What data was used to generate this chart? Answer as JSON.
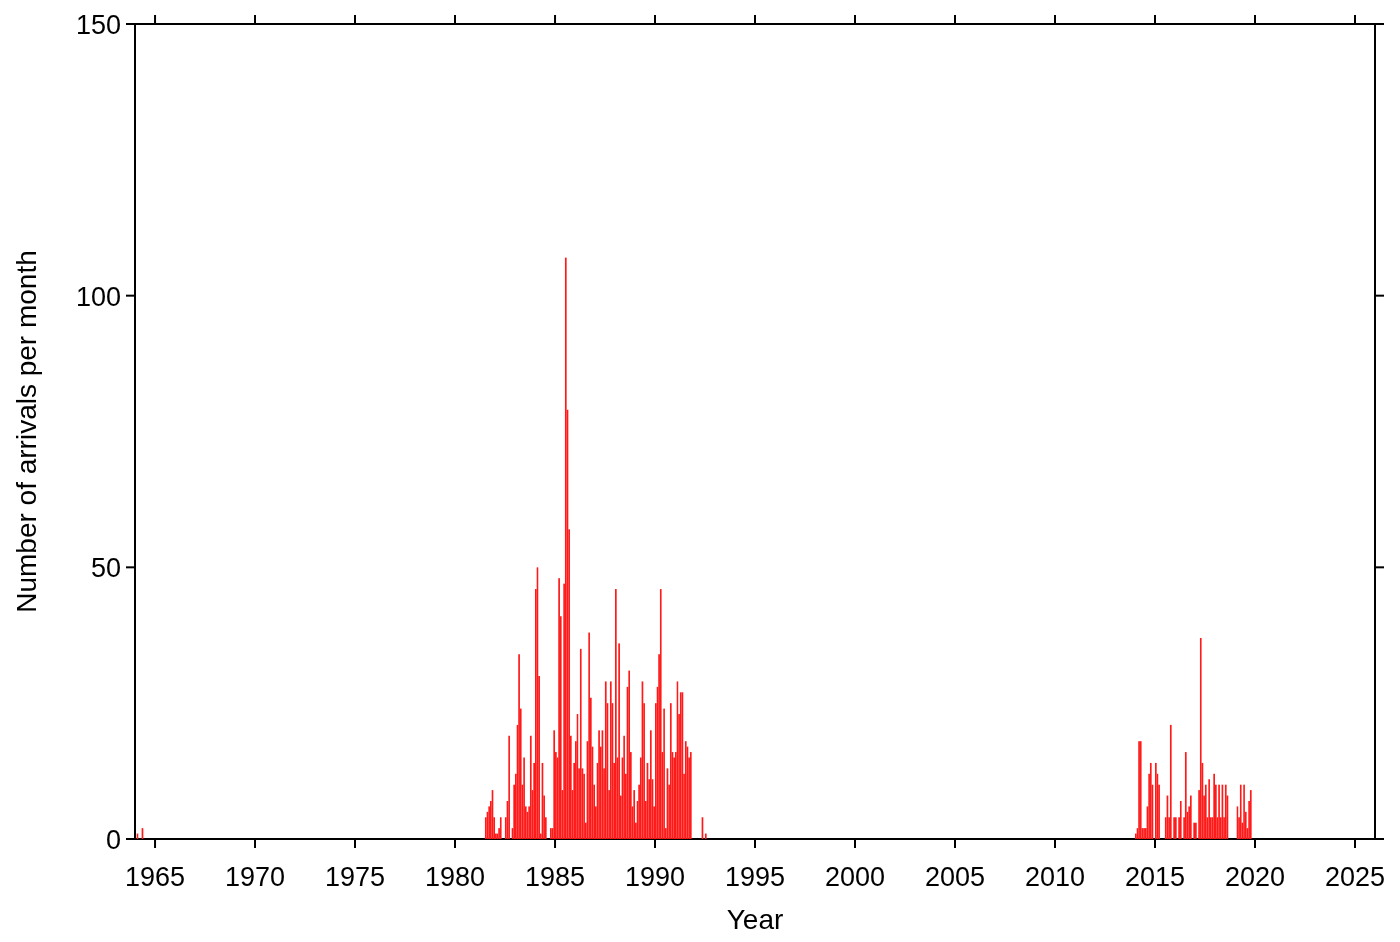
{
  "chart_data": {
    "type": "bar",
    "xlabel": "Year",
    "ylabel": "Number of arrivals per month",
    "color": "#ff1a1a",
    "grid": false,
    "xlim": [
      "1964",
      "2026"
    ],
    "xticks": [
      "1965",
      "1970",
      "1975",
      "1980",
      "1985",
      "1990",
      "1995",
      "2000",
      "2005",
      "2010",
      "2015",
      "2020",
      "2025"
    ],
    "ylim": [
      0,
      150
    ],
    "yticks": [
      0,
      50,
      100,
      150
    ],
    "x": [
      "1964-02",
      "1964-05",
      "1981-07",
      "1981-08",
      "1981-09",
      "1981-10",
      "1981-11",
      "1981-12",
      "1982-01",
      "1982-02",
      "1982-03",
      "1982-04",
      "1982-07",
      "1982-08",
      "1982-09",
      "1982-11",
      "1982-12",
      "1983-01",
      "1983-02",
      "1983-03",
      "1983-04",
      "1983-05",
      "1983-06",
      "1983-07",
      "1983-08",
      "1983-09",
      "1983-10",
      "1983-11",
      "1983-12",
      "1984-01",
      "1984-02",
      "1984-03",
      "1984-04",
      "1984-05",
      "1984-06",
      "1984-07",
      "1984-10",
      "1984-11",
      "1984-12",
      "1985-01",
      "1985-02",
      "1985-03",
      "1985-04",
      "1985-05",
      "1985-06",
      "1985-07",
      "1985-08",
      "1985-09",
      "1985-10",
      "1985-11",
      "1985-12",
      "1986-01",
      "1986-02",
      "1986-03",
      "1986-04",
      "1986-05",
      "1986-06",
      "1986-07",
      "1986-08",
      "1986-09",
      "1986-10",
      "1986-11",
      "1986-12",
      "1987-01",
      "1987-02",
      "1987-03",
      "1987-04",
      "1987-05",
      "1987-06",
      "1987-07",
      "1987-08",
      "1987-09",
      "1987-10",
      "1987-11",
      "1987-12",
      "1988-01",
      "1988-02",
      "1988-03",
      "1988-04",
      "1988-05",
      "1988-06",
      "1988-07",
      "1988-08",
      "1988-09",
      "1988-10",
      "1988-11",
      "1988-12",
      "1989-01",
      "1989-02",
      "1989-03",
      "1989-04",
      "1989-05",
      "1989-06",
      "1989-07",
      "1989-08",
      "1989-09",
      "1989-10",
      "1989-11",
      "1989-12",
      "1990-01",
      "1990-02",
      "1990-03",
      "1990-04",
      "1990-05",
      "1990-06",
      "1990-07",
      "1990-08",
      "1990-09",
      "1990-10",
      "1990-11",
      "1990-12",
      "1991-01",
      "1991-02",
      "1991-03",
      "1991-04",
      "1991-05",
      "1991-06",
      "1991-07",
      "1991-08",
      "1991-09",
      "1991-10",
      "1992-05",
      "1992-07",
      "2014-01",
      "2014-02",
      "2014-03",
      "2014-04",
      "2014-05",
      "2014-06",
      "2014-07",
      "2014-08",
      "2014-09",
      "2014-10",
      "2014-11",
      "2015-01",
      "2015-02",
      "2015-03",
      "2015-07",
      "2015-08",
      "2015-09",
      "2015-10",
      "2015-12",
      "2016-01",
      "2016-03",
      "2016-04",
      "2016-06",
      "2016-07",
      "2016-08",
      "2016-09",
      "2016-10",
      "2016-12",
      "2017-01",
      "2017-03",
      "2017-04",
      "2017-05",
      "2017-06",
      "2017-07",
      "2017-08",
      "2017-09",
      "2017-10",
      "2017-11",
      "2017-12",
      "2018-01",
      "2018-02",
      "2018-03",
      "2018-04",
      "2018-05",
      "2018-06",
      "2018-07",
      "2018-08",
      "2019-02",
      "2019-03",
      "2019-04",
      "2019-05",
      "2019-06",
      "2019-07",
      "2019-08",
      "2019-09",
      "2019-10"
    ],
    "values": [
      1,
      2,
      4,
      5,
      6,
      7,
      9,
      4,
      1,
      1,
      2,
      4,
      4,
      7,
      19,
      2,
      10,
      12,
      21,
      34,
      24,
      10,
      15,
      6,
      5,
      6,
      19,
      9,
      14,
      46,
      50,
      30,
      1,
      14,
      8,
      4,
      2,
      2,
      20,
      16,
      15,
      48,
      41,
      9,
      47,
      107,
      79,
      57,
      19,
      9,
      14,
      18,
      23,
      13,
      35,
      13,
      12,
      3,
      18,
      38,
      26,
      17,
      10,
      6,
      14,
      20,
      17,
      20,
      13,
      29,
      25,
      9,
      29,
      25,
      14,
      46,
      15,
      36,
      8,
      15,
      19,
      12,
      28,
      31,
      16,
      6,
      9,
      3,
      7,
      10,
      15,
      29,
      25,
      7,
      14,
      11,
      20,
      11,
      6,
      25,
      28,
      34,
      46,
      16,
      24,
      2,
      13,
      10,
      25,
      16,
      15,
      16,
      29,
      23,
      27,
      27,
      12,
      18,
      17,
      15,
      16,
      4,
      1,
      1,
      2,
      18,
      18,
      2,
      2,
      2,
      6,
      12,
      14,
      10,
      14,
      12,
      10,
      4,
      8,
      4,
      21,
      4,
      4,
      4,
      7,
      4,
      16,
      5,
      6,
      8,
      3,
      3,
      9,
      37,
      14,
      8,
      10,
      4,
      11,
      4,
      4,
      12,
      10,
      4,
      10,
      4,
      10,
      4,
      10,
      8,
      6,
      4,
      10,
      3,
      10,
      5,
      2,
      7,
      9
    ]
  }
}
